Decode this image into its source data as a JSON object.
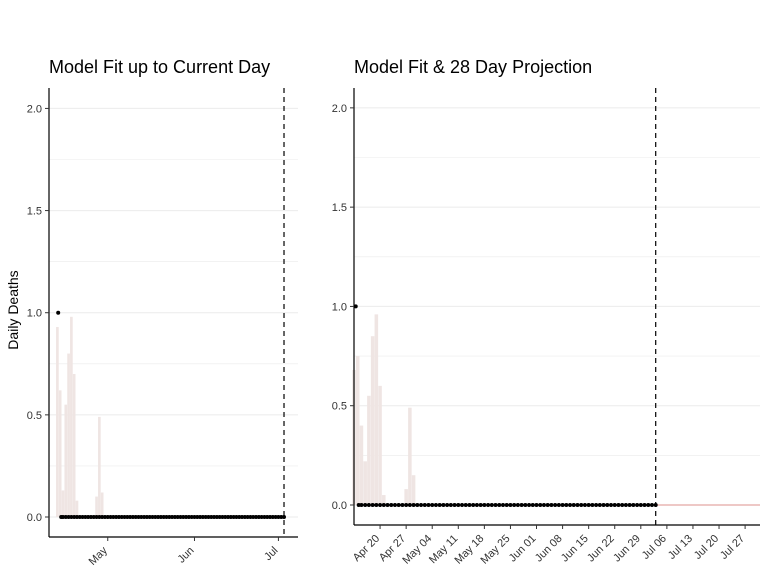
{
  "chart_data": [
    {
      "type": "line",
      "title": "Model Fit up to Current Day",
      "ylabel": "Daily Deaths",
      "xlabel": "",
      "ylim": [
        0,
        2.1
      ],
      "yticks": [
        0.0,
        0.5,
        1.0,
        1.5,
        2.0
      ],
      "ytick_labels": [
        "0.0",
        "0.5",
        "1.0",
        "1.5",
        "2.0"
      ],
      "xlim": [
        "2020-04-10",
        "2020-07-08"
      ],
      "xticks": [
        "2020-05-01",
        "2020-06-01",
        "2020-07-01"
      ],
      "xtick_labels": [
        "May",
        "Jun",
        "Jul"
      ],
      "current_day": "2020-07-03",
      "observed_start": "2020-04-14",
      "observed_end": "2020-07-03",
      "observed_nonzero": [
        {
          "x": "2020-04-14",
          "y": 1.0
        }
      ],
      "fit_band": [
        {
          "x": "2020-04-13",
          "y": 0.93
        },
        {
          "x": "2020-04-14",
          "y": 0.62
        },
        {
          "x": "2020-04-15",
          "y": 0.13
        },
        {
          "x": "2020-04-16",
          "y": 0.55
        },
        {
          "x": "2020-04-17",
          "y": 0.8
        },
        {
          "x": "2020-04-18",
          "y": 0.98
        },
        {
          "x": "2020-04-19",
          "y": 0.7
        },
        {
          "x": "2020-04-20",
          "y": 0.08
        },
        {
          "x": "2020-04-27",
          "y": 0.1
        },
        {
          "x": "2020-04-28",
          "y": 0.49
        },
        {
          "x": "2020-04-29",
          "y": 0.12
        }
      ],
      "colors": {
        "band": "#efe5e3",
        "points": "#000000",
        "grid": "#ebebeb"
      },
      "grid": "horizontal"
    },
    {
      "type": "line",
      "title": "Model Fit & 28 Day Projection",
      "ylabel": "",
      "xlabel": "",
      "ylim": [
        0,
        2.1
      ],
      "yticks": [
        0.0,
        0.5,
        1.0,
        1.5,
        2.0
      ],
      "ytick_labels": [
        "0.0",
        "0.5",
        "1.0",
        "1.5",
        "2.0"
      ],
      "xlim": [
        "2020-04-13",
        "2020-07-31"
      ],
      "xticks": [
        "2020-04-20",
        "2020-04-27",
        "2020-05-04",
        "2020-05-11",
        "2020-05-18",
        "2020-05-25",
        "2020-06-01",
        "2020-06-08",
        "2020-06-15",
        "2020-06-22",
        "2020-06-29",
        "2020-07-06",
        "2020-07-13",
        "2020-07-20",
        "2020-07-27"
      ],
      "xtick_labels": [
        "Apr 20",
        "Apr 27",
        "May 04",
        "May 11",
        "May 18",
        "May 25",
        "Jun 01",
        "Jun 08",
        "Jun 15",
        "Jun 22",
        "Jun 29",
        "Jul 06",
        "Jul 13",
        "Jul 20",
        "Jul 27"
      ],
      "current_day": "2020-07-03",
      "observed_start": "2020-04-14",
      "observed_end": "2020-07-03",
      "observed_nonzero": [
        {
          "x": "2020-04-14",
          "y": 1.0
        }
      ],
      "projection": [
        {
          "x": "2020-07-03",
          "y": 0.0
        },
        {
          "x": "2020-07-31",
          "y": 0.0
        }
      ],
      "fit_band": [
        {
          "x": "2020-04-13",
          "y": 0.68
        },
        {
          "x": "2020-04-14",
          "y": 0.75
        },
        {
          "x": "2020-04-15",
          "y": 0.4
        },
        {
          "x": "2020-04-16",
          "y": 0.22
        },
        {
          "x": "2020-04-17",
          "y": 0.55
        },
        {
          "x": "2020-04-18",
          "y": 0.85
        },
        {
          "x": "2020-04-19",
          "y": 0.96
        },
        {
          "x": "2020-04-20",
          "y": 0.6
        },
        {
          "x": "2020-04-21",
          "y": 0.05
        },
        {
          "x": "2020-04-27",
          "y": 0.08
        },
        {
          "x": "2020-04-28",
          "y": 0.49
        },
        {
          "x": "2020-04-29",
          "y": 0.15
        }
      ],
      "colors": {
        "band": "#efe5e3",
        "points": "#000000",
        "grid": "#ebebeb",
        "projection": "#e3a8a3"
      },
      "grid": "horizontal"
    }
  ]
}
